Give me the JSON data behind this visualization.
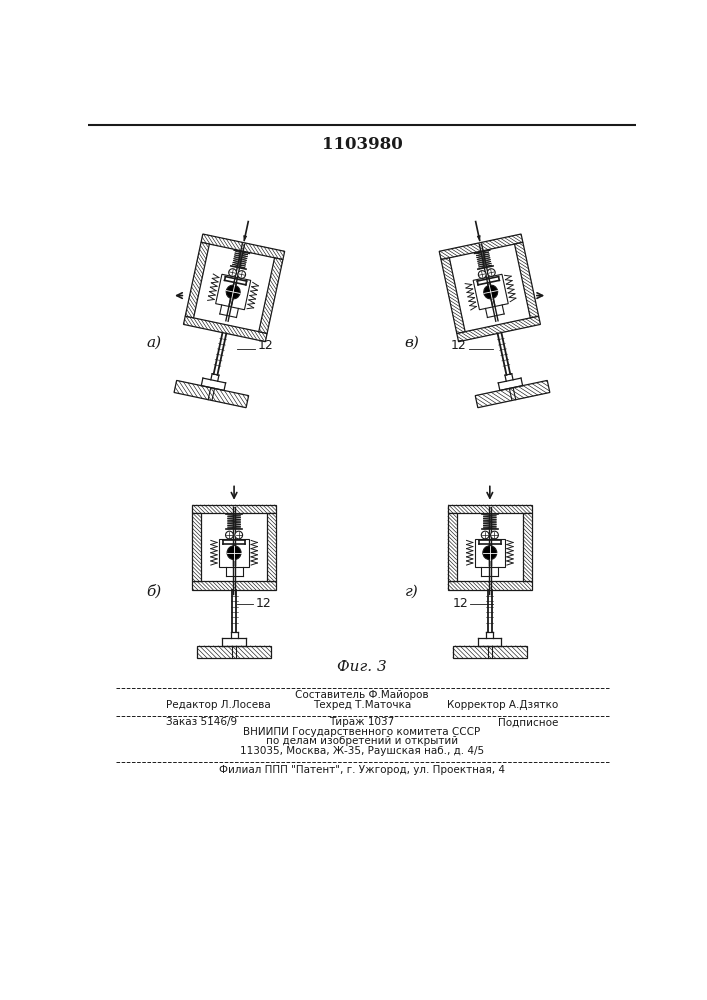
{
  "title": "1103980",
  "fig_label": "Фиг. 3",
  "footer_line1": "Составитель Ф.Майоров",
  "footer_line2a": "Редактор Л.Лосева",
  "footer_line2b": "Техред Т.Маточка",
  "footer_line2c": "Корректор А.Дзятко",
  "footer_line3a": "Заказ 5146/9",
  "footer_line3b": "Тираж 1037",
  "footer_line3c": "Подписное",
  "footer_line4": "ВНИИПИ Государственного комитета СССР",
  "footer_line5": "по делам изобретений и открытий",
  "footer_line6": "113035, Москва, Ж-35, Раушская наб., д. 4/5",
  "footer_line7": "Филиал ППП \"Патент\", г. Ужгород, ул. Проектная, 4",
  "bg_color": "#ffffff",
  "lc": "#1a1a1a",
  "panel_labels": [
    "а)",
    "б)",
    "в)",
    "г)"
  ],
  "part_label": "12"
}
